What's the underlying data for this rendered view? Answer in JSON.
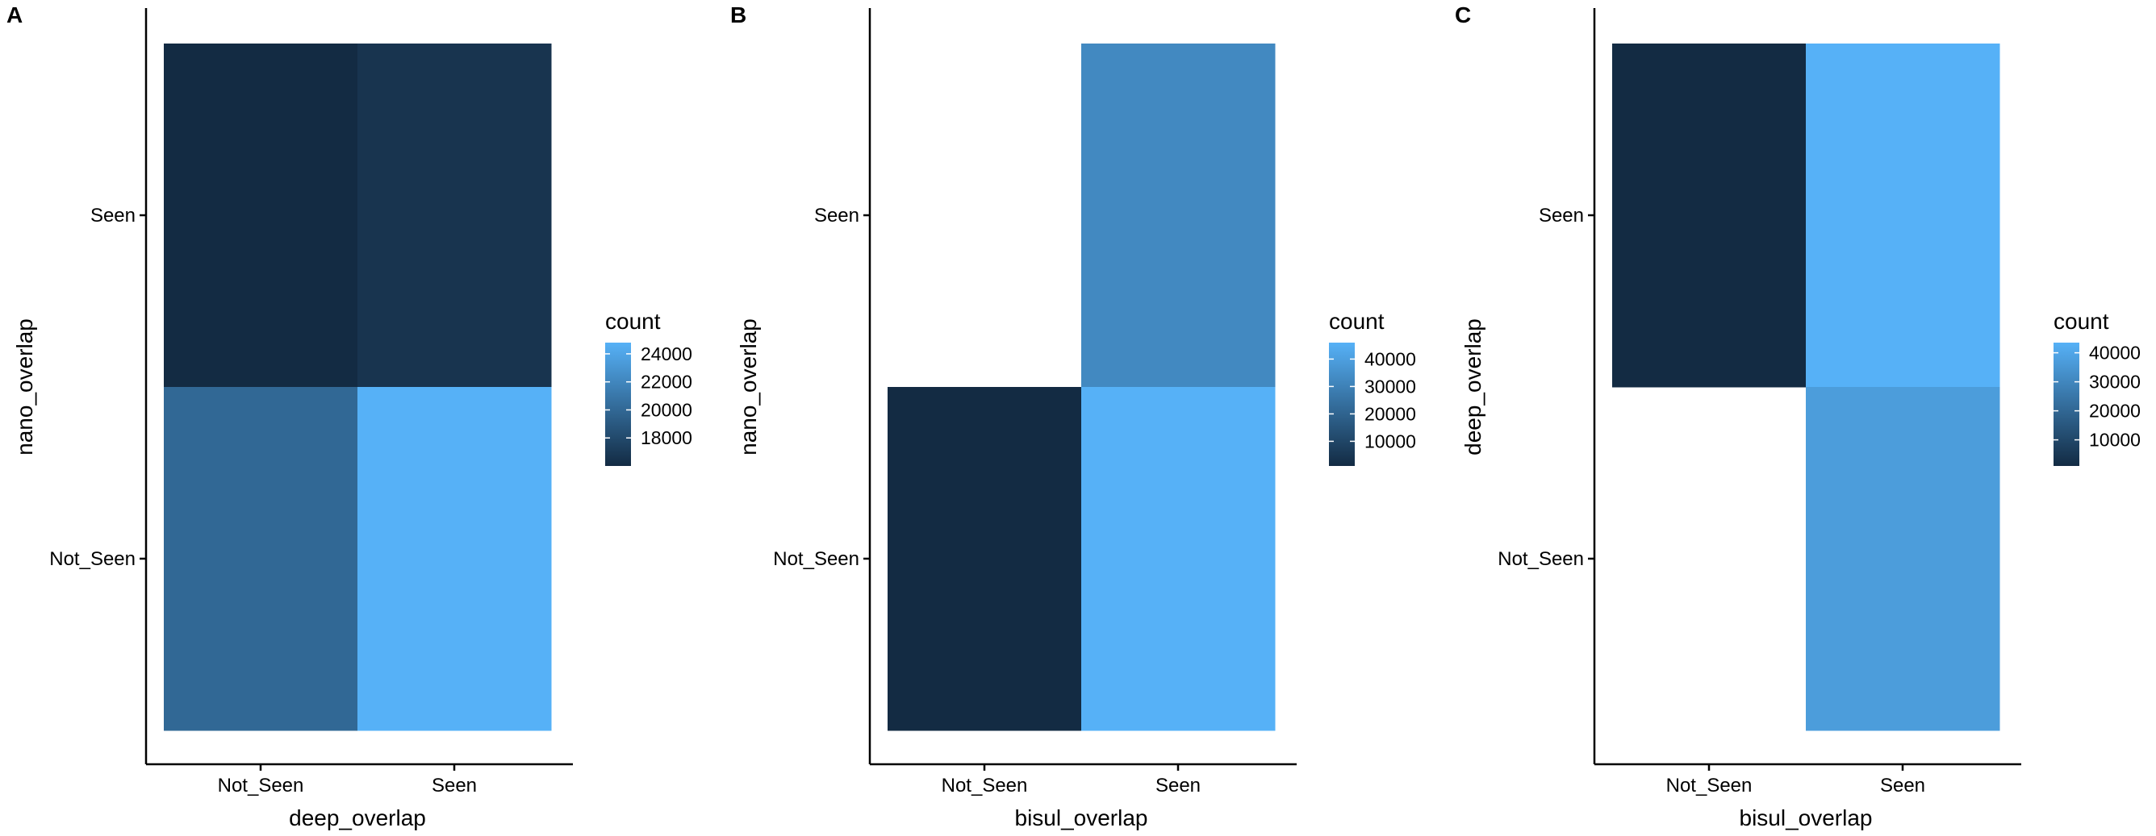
{
  "chart_data": [
    {
      "type": "heatmap",
      "panel_label": "A",
      "x": [
        "Not_Seen",
        "Seen"
      ],
      "y": [
        "Seen",
        "Not_Seen"
      ],
      "xlabel": "deep_overlap",
      "ylabel": "nano_overlap",
      "cells": [
        {
          "x": "Not_Seen",
          "y": "Seen",
          "value": 16000
        },
        {
          "x": "Seen",
          "y": "Seen",
          "value": 16600
        },
        {
          "x": "Not_Seen",
          "y": "Not_Seen",
          "value": 20000
        },
        {
          "x": "Seen",
          "y": "Not_Seen",
          "value": 24800
        }
      ],
      "legend": {
        "title": "count",
        "min": 16000,
        "max": 24800,
        "ticks": [
          18000,
          20000,
          22000,
          24000
        ]
      }
    },
    {
      "type": "heatmap",
      "panel_label": "B",
      "x": [
        "Not_Seen",
        "Seen"
      ],
      "y": [
        "Seen",
        "Not_Seen"
      ],
      "xlabel": "bisul_overlap",
      "ylabel": "nano_overlap",
      "cells": [
        {
          "x": "Seen",
          "y": "Seen",
          "value": 32600
        },
        {
          "x": "Not_Seen",
          "y": "Not_Seen",
          "value": 1000
        },
        {
          "x": "Seen",
          "y": "Not_Seen",
          "value": 46000
        }
      ],
      "legend": {
        "title": "count",
        "min": 1000,
        "max": 46000,
        "ticks": [
          10000,
          20000,
          30000,
          40000
        ]
      }
    },
    {
      "type": "heatmap",
      "panel_label": "C",
      "x": [
        "Not_Seen",
        "Seen"
      ],
      "y": [
        "Seen",
        "Not_Seen"
      ],
      "xlabel": "bisul_overlap",
      "ylabel": "deep_overlap",
      "cells": [
        {
          "x": "Not_Seen",
          "y": "Seen",
          "value": 1000
        },
        {
          "x": "Seen",
          "y": "Seen",
          "value": 43500
        },
        {
          "x": "Seen",
          "y": "Not_Seen",
          "value": 37000
        }
      ],
      "legend": {
        "title": "count",
        "min": 1000,
        "max": 43500,
        "ticks": [
          10000,
          20000,
          30000,
          40000
        ]
      }
    }
  ]
}
